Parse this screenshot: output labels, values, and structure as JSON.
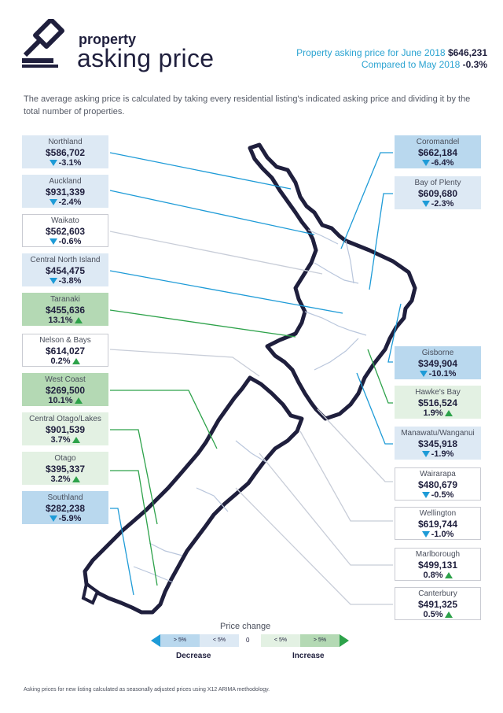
{
  "brand": {
    "small": "property",
    "big": "asking price"
  },
  "summary": {
    "line1_label": "Property asking price for June 2018",
    "line1_value": "$646,231",
    "line2_label": "Compared to May 2018",
    "line2_value": "-0.3%"
  },
  "intro": "The average asking price is calculated by taking every residential listing's indicated asking price and dividing it by the total number of properties.",
  "colors": {
    "navy": "#1f1f3d",
    "blue": "#1e9bd7",
    "green": "#2da24a",
    "decrease_big": "#b9d8ee",
    "decrease_small": "#dde9f4",
    "increase_small": "#e3f1e3",
    "increase_big": "#b4d9b4"
  },
  "regions": [
    {
      "name": "Northland",
      "price": "$586,702",
      "change": "-3.1%",
      "direction": "down",
      "band": "dec-small"
    },
    {
      "name": "Auckland",
      "price": "$931,339",
      "change": "-2.4%",
      "direction": "down",
      "band": "dec-small"
    },
    {
      "name": "Waikato",
      "price": "$562,603",
      "change": "-0.6%",
      "direction": "down",
      "band": "neutral"
    },
    {
      "name": "Central North Island",
      "price": "$454,475",
      "change": "-3.8%",
      "direction": "down",
      "band": "dec-small"
    },
    {
      "name": "Taranaki",
      "price": "$455,636",
      "change": "13.1%",
      "direction": "up",
      "band": "inc-big"
    },
    {
      "name": "Nelson & Bays",
      "price": "$614,027",
      "change": "0.2%",
      "direction": "up",
      "band": "neutral"
    },
    {
      "name": "West Coast",
      "price": "$269,500",
      "change": "10.1%",
      "direction": "up",
      "band": "inc-big"
    },
    {
      "name": "Central Otago/Lakes",
      "price": "$901,539",
      "change": "3.7%",
      "direction": "up",
      "band": "inc-small"
    },
    {
      "name": "Otago",
      "price": "$395,337",
      "change": "3.2%",
      "direction": "up",
      "band": "inc-small"
    },
    {
      "name": "Southland",
      "price": "$282,238",
      "change": "-5.9%",
      "direction": "down",
      "band": "dec-big"
    },
    {
      "name": "Coromandel",
      "price": "$662,184",
      "change": "-6.4%",
      "direction": "down",
      "band": "dec-big"
    },
    {
      "name": "Bay of Plenty",
      "price": "$609,680",
      "change": "-2.3%",
      "direction": "down",
      "band": "dec-small"
    },
    {
      "name": "Gisborne",
      "price": "$349,904",
      "change": "-10.1%",
      "direction": "down",
      "band": "dec-big"
    },
    {
      "name": "Hawke's Bay",
      "price": "$516,524",
      "change": "1.9%",
      "direction": "up",
      "band": "inc-small"
    },
    {
      "name": "Manawatu/Wanganui",
      "price": "$345,918",
      "change": "-1.9%",
      "direction": "down",
      "band": "dec-small"
    },
    {
      "name": "Wairarapa",
      "price": "$480,679",
      "change": "-0.5%",
      "direction": "down",
      "band": "neutral"
    },
    {
      "name": "Wellington",
      "price": "$619,744",
      "change": "-1.0%",
      "direction": "down",
      "band": "neutral"
    },
    {
      "name": "Marlborough",
      "price": "$499,131",
      "change": "0.8%",
      "direction": "up",
      "band": "neutral"
    },
    {
      "name": "Canterbury",
      "price": "$491,325",
      "change": "0.5%",
      "direction": "up",
      "band": "neutral"
    }
  ],
  "legend": {
    "title": "Price change",
    "dec_big": "> 5%",
    "dec_small": "< 5%",
    "zero": "0",
    "inc_small": "< 5%",
    "inc_big": "> 5%",
    "decrease_label": "Decrease",
    "increase_label": "Increase"
  },
  "footnote": "Asking prices for new listing calculated as seasonally adjusted prices using X12 ARIMA methodology."
}
